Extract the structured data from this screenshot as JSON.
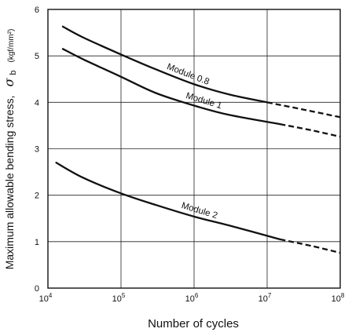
{
  "chart_data": {
    "type": "line",
    "xlabel": "Number of cycles",
    "ylabel": {
      "text": "Maximum allowable bending stress,",
      "symbol": "σ",
      "subscript": "b",
      "unit": "(kgf/mm²)"
    },
    "x_scale": "log",
    "xlim": [
      10000,
      100000000
    ],
    "ylim": [
      0,
      6
    ],
    "x_ticks": [
      {
        "base": "10",
        "exp": "4",
        "value": 10000
      },
      {
        "base": "10",
        "exp": "5",
        "value": 100000
      },
      {
        "base": "10",
        "exp": "6",
        "value": 1000000
      },
      {
        "base": "10",
        "exp": "7",
        "value": 10000000
      },
      {
        "base": "10",
        "exp": "8",
        "value": 100000000
      }
    ],
    "y_ticks": [
      "0",
      "1",
      "2",
      "3",
      "4",
      "5",
      "6"
    ],
    "grid": true,
    "series": [
      {
        "name": "Module 0.8",
        "solid": [
          [
            16000,
            5.63
          ],
          [
            30000,
            5.4
          ],
          [
            100000,
            5.03
          ],
          [
            300000,
            4.71
          ],
          [
            1000000,
            4.39
          ],
          [
            3000000,
            4.17
          ],
          [
            10000000,
            4.0
          ]
        ],
        "dashed": [
          [
            10000000,
            4.0
          ],
          [
            30000000,
            3.85
          ],
          [
            100000000,
            3.68
          ]
        ]
      },
      {
        "name": "Module 1",
        "solid": [
          [
            16000,
            5.15
          ],
          [
            30000,
            4.93
          ],
          [
            100000,
            4.55
          ],
          [
            300000,
            4.2
          ],
          [
            1000000,
            3.93
          ],
          [
            3000000,
            3.73
          ],
          [
            15000000,
            3.53
          ]
        ],
        "dashed": [
          [
            15000000,
            3.53
          ],
          [
            40000000,
            3.4
          ],
          [
            100000000,
            3.26
          ]
        ]
      },
      {
        "name": "Module 2",
        "solid": [
          [
            13000,
            2.7
          ],
          [
            30000,
            2.38
          ],
          [
            100000,
            2.04
          ],
          [
            300000,
            1.79
          ],
          [
            1000000,
            1.54
          ],
          [
            3000000,
            1.35
          ],
          [
            15000000,
            1.05
          ]
        ],
        "dashed": [
          [
            15000000,
            1.05
          ],
          [
            40000000,
            0.91
          ],
          [
            100000000,
            0.76
          ]
        ]
      }
    ]
  }
}
